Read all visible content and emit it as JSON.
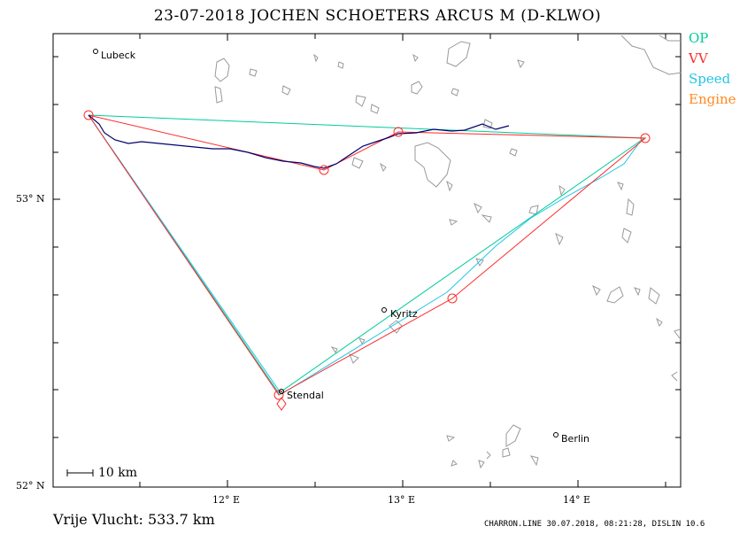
{
  "title": "23-07-2018   JOCHEN SCHOETERS   ARCUS M (D-KLWO)",
  "legend": {
    "items": [
      {
        "label": "OP",
        "color": "#00cc99"
      },
      {
        "label": "VV",
        "color": "#ff2a2a"
      },
      {
        "label": "Speed",
        "color": "#22c6e6"
      },
      {
        "label": "Engine",
        "color": "#ff8a1f"
      }
    ]
  },
  "axes": {
    "lat_labels": [
      "53° N",
      "52° N"
    ],
    "lon_labels": [
      "12° E",
      "13° E",
      "14° E"
    ]
  },
  "cities": {
    "lubeck": "Lubeck",
    "kyritz": "Kyritz",
    "stendal": "Stendal",
    "berlin": "Berlin"
  },
  "scale_label": "10 km",
  "free_flight": "Vrije Vlucht:  533.7 km",
  "footer": "CHARRON.LINE 30.07.2018, 08:21:28, DISLIN 10.6",
  "colors": {
    "track": "#00006e",
    "op_line": "#00cc99",
    "vv_line": "#ff2a2a",
    "speed_line": "#22c6e6",
    "water": "#999999"
  }
}
